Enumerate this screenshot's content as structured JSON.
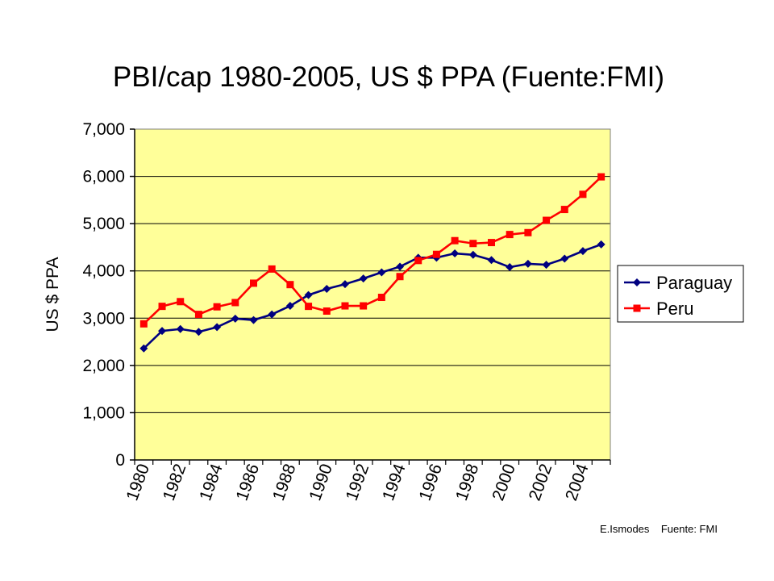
{
  "chart_data": {
    "type": "line",
    "title": "PBI/cap 1980-2005, US $ PPA (Fuente:FMI)",
    "ylabel": "US $ PPA",
    "xlabel": "",
    "ylim": [
      0,
      7000
    ],
    "yticks": [
      "0",
      "1,000",
      "2,000",
      "3,000",
      "4,000",
      "5,000",
      "6,000",
      "7,000"
    ],
    "yticks_values": [
      0,
      1000,
      2000,
      3000,
      4000,
      5000,
      6000,
      7000
    ],
    "x": [
      1980,
      1981,
      1982,
      1983,
      1984,
      1985,
      1986,
      1987,
      1988,
      1989,
      1990,
      1991,
      1992,
      1993,
      1994,
      1995,
      1996,
      1997,
      1998,
      1999,
      2000,
      2001,
      2002,
      2003,
      2004,
      2005
    ],
    "xtick_labels": [
      "1980",
      "1982",
      "1984",
      "1986",
      "1988",
      "1990",
      "1992",
      "1994",
      "1996",
      "1998",
      "2000",
      "2002",
      "2004"
    ],
    "xtick_years": [
      1980,
      1982,
      1984,
      1986,
      1988,
      1990,
      1992,
      1994,
      1996,
      1998,
      2000,
      2002,
      2004
    ],
    "grid": true,
    "legend_position": "right",
    "plot_background": "#FFFF99",
    "series": [
      {
        "name": "Paraguay",
        "color": "#000080",
        "marker": "diamond",
        "values": [
          2360,
          2730,
          2770,
          2710,
          2810,
          2990,
          2960,
          3080,
          3260,
          3490,
          3620,
          3720,
          3840,
          3970,
          4090,
          4280,
          4280,
          4370,
          4340,
          4230,
          4080,
          4150,
          4130,
          4260,
          4420,
          4560
        ]
      },
      {
        "name": "Peru",
        "color": "#FF0000",
        "marker": "square",
        "values": [
          2880,
          3250,
          3350,
          3080,
          3240,
          3330,
          3740,
          4040,
          3710,
          3250,
          3150,
          3260,
          3260,
          3440,
          3880,
          4220,
          4350,
          4640,
          4580,
          4600,
          4770,
          4810,
          5070,
          5300,
          5620,
          5990
        ]
      }
    ],
    "annotation": "E.Ismodes    Fuente: FMI"
  }
}
